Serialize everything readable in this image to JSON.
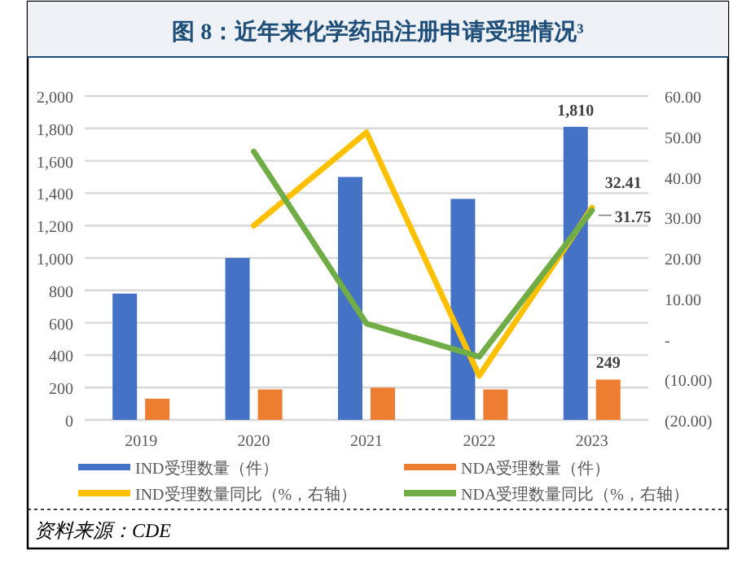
{
  "chart_data": {
    "type": "bar",
    "title": "图 8：近年来化学药品注册申请受理情况³",
    "categories": [
      "2019",
      "2020",
      "2021",
      "2022",
      "2023"
    ],
    "series": [
      {
        "name": "IND受理数量（件）",
        "color": "#4472c4",
        "values": [
          780,
          1000,
          1500,
          1365,
          1810
        ],
        "value_labels": [
          null,
          null,
          null,
          null,
          "1,810"
        ]
      },
      {
        "name": "NDA受理数量（件）",
        "color": "#ed7d31",
        "values": [
          131,
          188,
          199,
          188,
          249
        ],
        "value_labels": [
          null,
          null,
          null,
          null,
          "249"
        ]
      },
      {
        "name": "IND受理数量同比（%，右轴）",
        "type": "line",
        "axis": "y2",
        "color": "#ffc000",
        "values": [
          null,
          28.0,
          51.0,
          -9.1,
          32.41
        ],
        "value_labels": [
          null,
          null,
          null,
          null,
          "32.41"
        ]
      },
      {
        "name": "NDA受理数量同比（%，右轴）",
        "type": "line",
        "axis": "y2",
        "color": "#70ad47",
        "values": [
          null,
          46.3,
          3.8,
          -4.4,
          31.75
        ],
        "value_labels": [
          null,
          null,
          null,
          null,
          "31.75"
        ]
      }
    ],
    "ylim": [
      0,
      2000
    ],
    "yticks": [
      0,
      200,
      400,
      600,
      800,
      {
        "value": 1000,
        "label": "1,000"
      },
      {
        "value": 1200,
        "label": "1,200"
      },
      {
        "value": 1400,
        "label": "1,400"
      },
      {
        "value": 1600,
        "label": "1,600"
      },
      {
        "value": 1800,
        "label": "1,800"
      },
      {
        "value": 2000,
        "label": "2,000"
      }
    ],
    "y2lim": [
      -20,
      60
    ],
    "y2ticks": [
      {
        "value": -20,
        "label": "(20.00)"
      },
      {
        "value": -10,
        "label": "(10.00)"
      },
      {
        "value": 0,
        "label": "-"
      },
      {
        "value": 10,
        "label": "10.00"
      },
      {
        "value": 20,
        "label": "20.00"
      },
      {
        "value": 30,
        "label": "30.00"
      },
      {
        "value": 40,
        "label": "40.00"
      },
      {
        "value": 50,
        "label": "50.00"
      },
      {
        "value": 60,
        "label": "60.00"
      }
    ],
    "grid": "y",
    "legend": "bottom",
    "marker": "none",
    "line_style": "solid",
    "annotations": [
      "资料来源：CDE"
    ]
  }
}
